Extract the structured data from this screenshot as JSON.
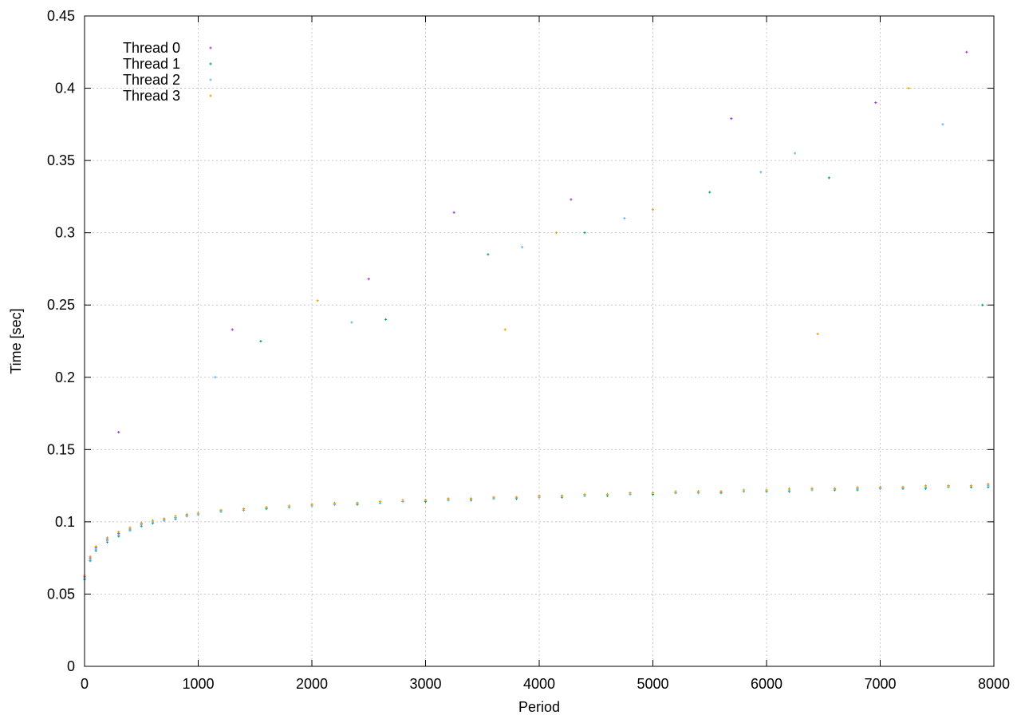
{
  "chart_data": {
    "type": "scatter",
    "title": "",
    "xlabel": "Period",
    "ylabel": "Time [sec]",
    "xlim": [
      0,
      8000
    ],
    "ylim": [
      0,
      0.45
    ],
    "x_ticks": [
      0,
      1000,
      2000,
      3000,
      4000,
      5000,
      6000,
      7000,
      8000
    ],
    "x_tick_labels": [
      "0",
      "1000",
      "2000",
      "3000",
      "4000",
      "5000",
      "6000",
      "7000",
      "8000"
    ],
    "y_ticks": [
      0,
      0.05,
      0.1,
      0.15,
      0.2,
      0.25,
      0.3,
      0.35,
      0.4,
      0.45
    ],
    "y_tick_labels": [
      "0",
      "0.05",
      "0.1",
      "0.15",
      "0.2",
      "0.25",
      "0.3",
      "0.35",
      "0.4",
      "0.45"
    ],
    "grid": true,
    "legend_position": "top-left",
    "series": [
      {
        "name": "Thread 0",
        "color": "#9a32cd",
        "x": [
          0,
          50,
          100,
          200,
          300,
          400,
          500,
          600,
          700,
          800,
          900,
          1000,
          1200,
          1400,
          1600,
          1800,
          2000,
          2200,
          2400,
          2600,
          2800,
          3000,
          3200,
          3400,
          3600,
          3800,
          4000,
          4200,
          4400,
          4600,
          4800,
          5000,
          5200,
          5400,
          5600,
          5800,
          6000,
          6200,
          6400,
          6600,
          6800,
          7000,
          7200,
          7400,
          7600,
          7800,
          7950,
          300,
          1300,
          2500,
          3250,
          4280,
          5690,
          6960,
          7760
        ],
        "y": [
          0.062,
          0.075,
          0.082,
          0.088,
          0.092,
          0.095,
          0.099,
          0.1,
          0.102,
          0.103,
          0.105,
          0.106,
          0.108,
          0.109,
          0.11,
          0.111,
          0.112,
          0.112,
          0.113,
          0.114,
          0.114,
          0.115,
          0.116,
          0.116,
          0.117,
          0.117,
          0.118,
          0.118,
          0.119,
          0.119,
          0.12,
          0.12,
          0.12,
          0.121,
          0.121,
          0.122,
          0.122,
          0.122,
          0.123,
          0.123,
          0.123,
          0.124,
          0.124,
          0.124,
          0.125,
          0.125,
          0.126,
          0.162,
          0.233,
          0.268,
          0.314,
          0.323,
          0.379,
          0.39,
          0.425
        ]
      },
      {
        "name": "Thread 1",
        "color": "#009e73",
        "x": [
          0,
          50,
          100,
          200,
          300,
          400,
          500,
          600,
          700,
          800,
          900,
          1000,
          1200,
          1400,
          1600,
          1800,
          2000,
          2200,
          2400,
          2600,
          2800,
          3000,
          3200,
          3400,
          3600,
          3800,
          4000,
          4200,
          4400,
          4600,
          4800,
          5000,
          5200,
          5400,
          5600,
          5800,
          6000,
          6200,
          6400,
          6600,
          6800,
          7000,
          7200,
          7400,
          7600,
          7800,
          7950,
          1550,
          2650,
          3550,
          4400,
          5500,
          6550,
          7900
        ],
        "y": [
          0.06,
          0.073,
          0.08,
          0.086,
          0.09,
          0.094,
          0.097,
          0.099,
          0.101,
          0.102,
          0.104,
          0.105,
          0.107,
          0.108,
          0.109,
          0.11,
          0.111,
          0.112,
          0.112,
          0.113,
          0.114,
          0.114,
          0.115,
          0.115,
          0.116,
          0.116,
          0.117,
          0.117,
          0.118,
          0.118,
          0.119,
          0.119,
          0.12,
          0.12,
          0.12,
          0.121,
          0.121,
          0.121,
          0.122,
          0.122,
          0.122,
          0.123,
          0.123,
          0.123,
          0.124,
          0.124,
          0.124,
          0.225,
          0.24,
          0.285,
          0.3,
          0.328,
          0.338,
          0.25
        ]
      },
      {
        "name": "Thread 2",
        "color": "#56b4e9",
        "x": [
          0,
          50,
          100,
          200,
          300,
          400,
          500,
          600,
          700,
          800,
          900,
          1000,
          1200,
          1400,
          1600,
          1800,
          2000,
          2200,
          2400,
          2600,
          2800,
          3000,
          3200,
          3400,
          3600,
          3800,
          4000,
          4200,
          4400,
          4600,
          4800,
          5000,
          5200,
          5400,
          5600,
          5800,
          6000,
          6200,
          6400,
          6600,
          6800,
          7000,
          7200,
          7400,
          7600,
          7800,
          7950,
          1150,
          2350,
          3850,
          4750,
          5950,
          6250,
          7550
        ],
        "y": [
          0.061,
          0.074,
          0.081,
          0.087,
          0.091,
          0.094,
          0.098,
          0.1,
          0.101,
          0.103,
          0.104,
          0.105,
          0.107,
          0.108,
          0.11,
          0.11,
          0.111,
          0.112,
          0.113,
          0.113,
          0.114,
          0.115,
          0.115,
          0.116,
          0.116,
          0.117,
          0.117,
          0.118,
          0.118,
          0.119,
          0.119,
          0.12,
          0.12,
          0.12,
          0.121,
          0.121,
          0.122,
          0.122,
          0.122,
          0.123,
          0.123,
          0.123,
          0.124,
          0.124,
          0.124,
          0.125,
          0.125,
          0.2,
          0.238,
          0.29,
          0.31,
          0.342,
          0.355,
          0.375
        ]
      },
      {
        "name": "Thread 3",
        "color": "#e69f00",
        "x": [
          0,
          50,
          100,
          200,
          300,
          400,
          500,
          600,
          700,
          800,
          900,
          1000,
          1200,
          1400,
          1600,
          1800,
          2000,
          2200,
          2400,
          2600,
          2800,
          3000,
          3200,
          3400,
          3600,
          3800,
          4000,
          4200,
          4400,
          4600,
          4800,
          5000,
          5200,
          5400,
          5600,
          5800,
          6000,
          6200,
          6400,
          6600,
          6800,
          7000,
          7200,
          7400,
          7600,
          7800,
          7950,
          2050,
          3700,
          4150,
          5000,
          6450,
          7250
        ],
        "y": [
          0.063,
          0.076,
          0.083,
          0.089,
          0.093,
          0.096,
          0.099,
          0.101,
          0.102,
          0.104,
          0.105,
          0.106,
          0.108,
          0.109,
          0.11,
          0.111,
          0.112,
          0.113,
          0.113,
          0.114,
          0.115,
          0.115,
          0.116,
          0.116,
          0.117,
          0.117,
          0.118,
          0.118,
          0.119,
          0.119,
          0.12,
          0.12,
          0.121,
          0.121,
          0.121,
          0.122,
          0.122,
          0.123,
          0.123,
          0.123,
          0.124,
          0.124,
          0.124,
          0.125,
          0.125,
          0.125,
          0.126,
          0.253,
          0.233,
          0.3,
          0.316,
          0.23,
          0.4
        ]
      }
    ]
  }
}
